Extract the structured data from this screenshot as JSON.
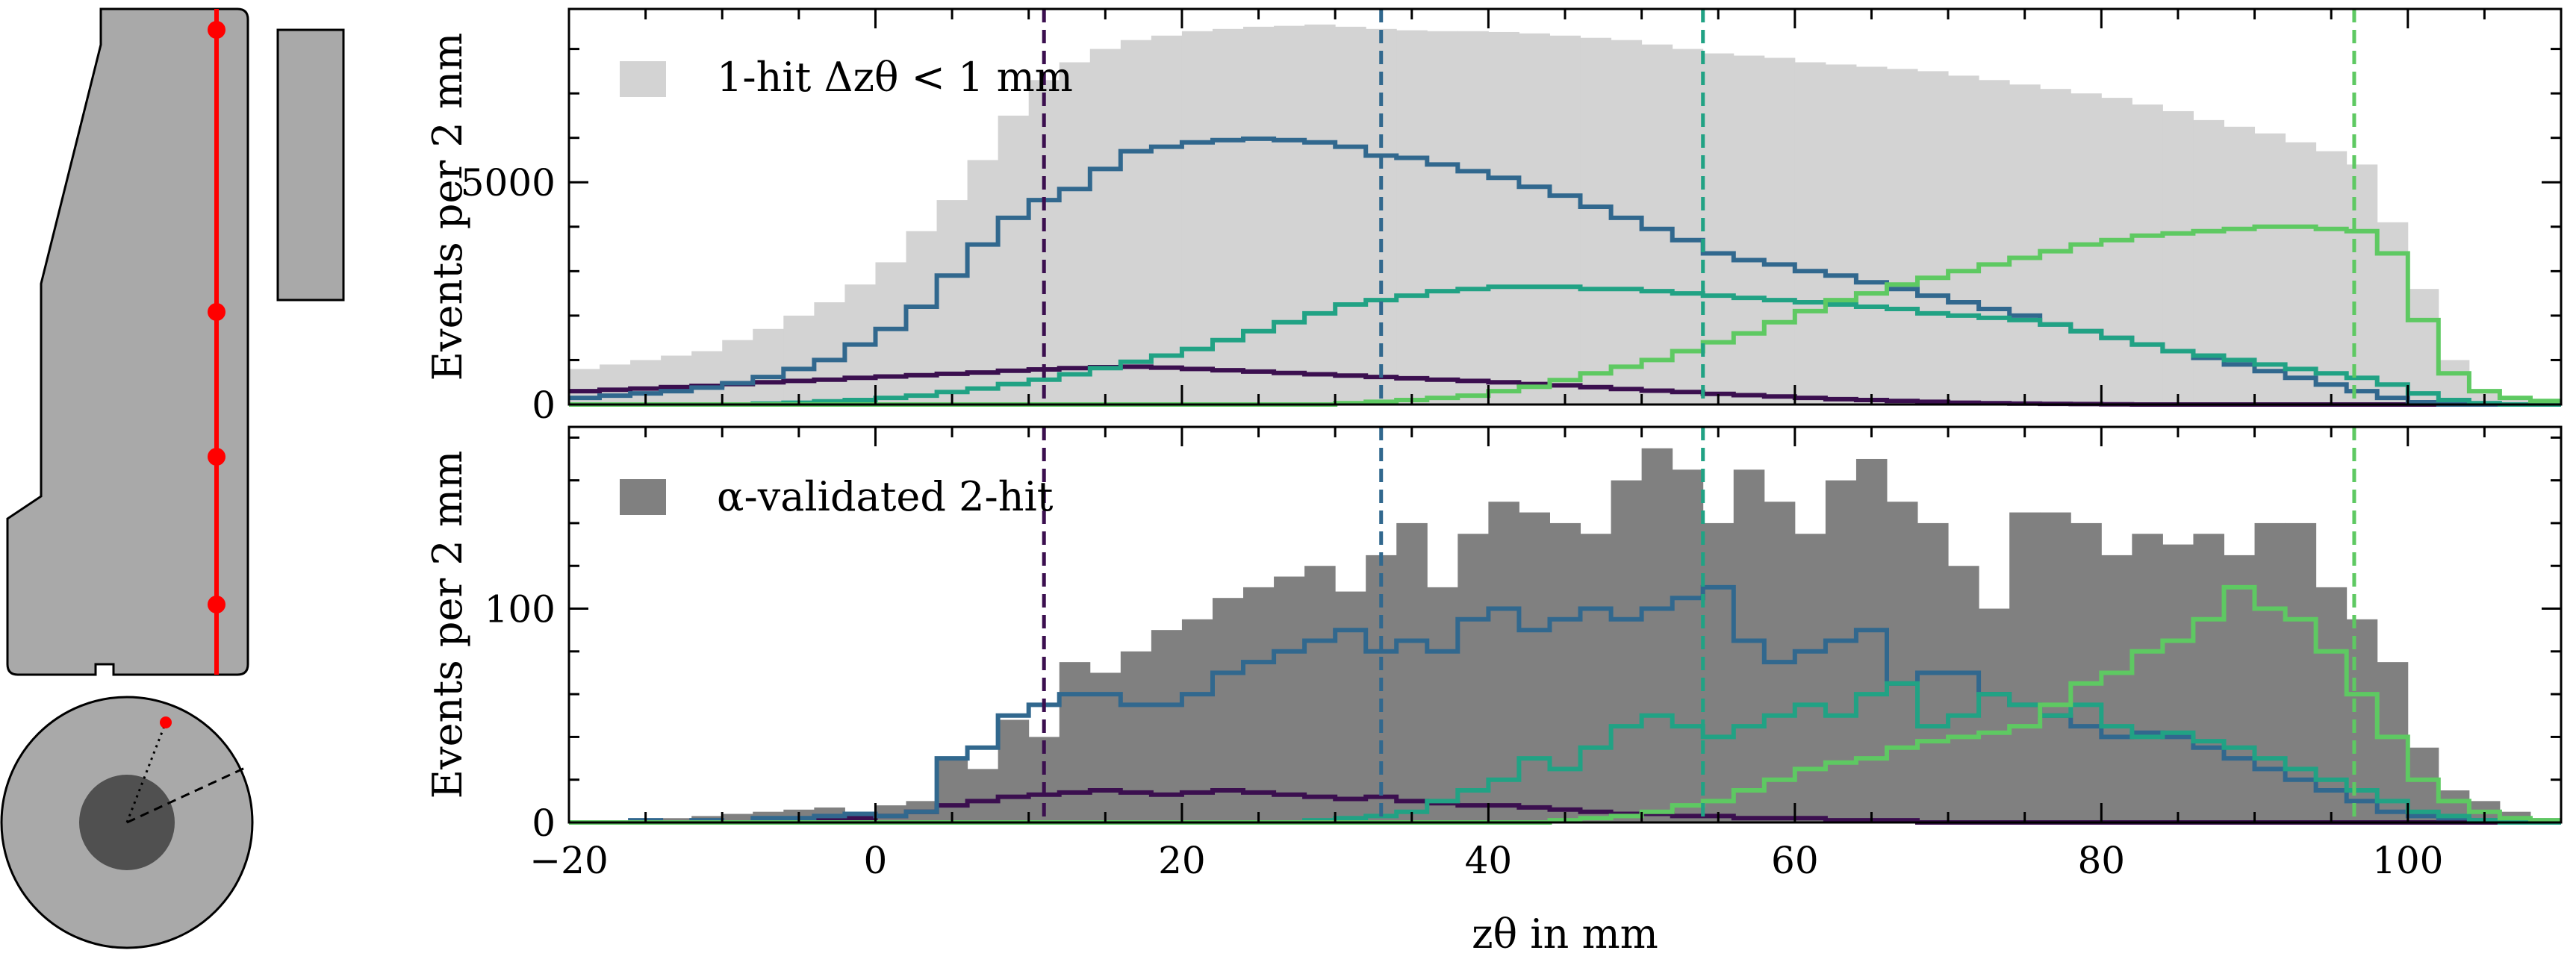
{
  "chart_data": [
    {
      "type": "area",
      "panel": "top",
      "ylabel": "Events per 2 mm",
      "xlim": [
        -20,
        110
      ],
      "ylim": [
        0,
        8900
      ],
      "yticks": [
        0,
        5000
      ],
      "legend": {
        "label": "1-hit Δzθ < 1 mm",
        "placement": "top-left"
      },
      "histogram": {
        "name": "1-hit Δzθ < 1 mm",
        "color": "#d3d3d3",
        "bin_edges": [
          -20,
          -18,
          -16,
          -14,
          -12,
          -10,
          -8,
          -6,
          -4,
          -2,
          0,
          2,
          4,
          6,
          8,
          10,
          12,
          14,
          16,
          18,
          20,
          22,
          24,
          26,
          28,
          30,
          32,
          34,
          36,
          38,
          40,
          42,
          44,
          46,
          48,
          50,
          52,
          54,
          56,
          58,
          60,
          62,
          64,
          66,
          68,
          70,
          72,
          74,
          76,
          78,
          80,
          82,
          84,
          86,
          88,
          90,
          92,
          94,
          96,
          98,
          100,
          102,
          104,
          106,
          108,
          110
        ],
        "values": [
          800,
          900,
          1000,
          1100,
          1200,
          1450,
          1700,
          2000,
          2300,
          2700,
          3200,
          3900,
          4600,
          5500,
          6500,
          7300,
          7700,
          8000,
          8200,
          8300,
          8400,
          8450,
          8500,
          8520,
          8550,
          8500,
          8450,
          8420,
          8400,
          8400,
          8380,
          8350,
          8300,
          8250,
          8200,
          8100,
          8000,
          7900,
          7850,
          7800,
          7700,
          7650,
          7600,
          7550,
          7500,
          7400,
          7300,
          7200,
          7100,
          7000,
          6900,
          6750,
          6600,
          6400,
          6250,
          6100,
          5900,
          5700,
          5400,
          4100,
          2600,
          1000,
          300,
          100,
          50
        ]
      },
      "series": [
        {
          "name": "",
          "color": "#3b0f4f",
          "dashed_line_x": 11,
          "values": [
            300,
            330,
            360,
            390,
            420,
            460,
            500,
            530,
            560,
            600,
            630,
            660,
            690,
            720,
            760,
            790,
            820,
            840,
            850,
            830,
            800,
            770,
            740,
            710,
            680,
            650,
            620,
            590,
            560,
            530,
            500,
            460,
            430,
            390,
            350,
            310,
            280,
            240,
            210,
            180,
            150,
            120,
            100,
            80,
            60,
            40,
            30,
            20,
            15,
            10,
            5,
            0,
            0,
            0,
            0,
            0,
            0,
            0,
            0,
            0,
            0,
            0,
            0,
            0,
            0
          ]
        },
        {
          "name": "",
          "color": "#31688e",
          "dashed_line_x": 33,
          "values": [
            150,
            200,
            250,
            300,
            380,
            480,
            620,
            800,
            1000,
            1350,
            1700,
            2200,
            2900,
            3600,
            4200,
            4600,
            4850,
            5300,
            5700,
            5800,
            5900,
            5950,
            5980,
            5950,
            5900,
            5800,
            5600,
            5550,
            5400,
            5250,
            5100,
            4900,
            4700,
            4450,
            4200,
            3950,
            3700,
            3400,
            3250,
            3150,
            3000,
            2900,
            2750,
            2600,
            2450,
            2300,
            2150,
            2000,
            1800,
            1650,
            1500,
            1350,
            1200,
            1050,
            900,
            750,
            600,
            450,
            300,
            150,
            50,
            0,
            0,
            0,
            0
          ]
        },
        {
          "name": "",
          "color": "#21a284",
          "dashed_line_x": 54,
          "values": [
            0,
            0,
            0,
            0,
            0,
            0,
            20,
            40,
            70,
            100,
            150,
            200,
            280,
            360,
            460,
            560,
            680,
            820,
            960,
            1100,
            1250,
            1450,
            1650,
            1850,
            2050,
            2250,
            2350,
            2450,
            2550,
            2600,
            2650,
            2650,
            2650,
            2600,
            2600,
            2550,
            2500,
            2450,
            2400,
            2350,
            2300,
            2250,
            2200,
            2150,
            2050,
            2000,
            1950,
            1900,
            1800,
            1650,
            1500,
            1350,
            1200,
            1100,
            1000,
            900,
            800,
            700,
            600,
            450,
            250,
            100,
            30,
            0,
            0
          ]
        },
        {
          "name": "",
          "color": "#5ec962",
          "dashed_line_x": 96.5,
          "values": [
            0,
            0,
            0,
            0,
            0,
            0,
            0,
            0,
            0,
            0,
            0,
            0,
            0,
            0,
            0,
            0,
            0,
            0,
            0,
            0,
            0,
            0,
            0,
            0,
            0,
            30,
            60,
            100,
            150,
            200,
            300,
            400,
            550,
            700,
            850,
            1000,
            1200,
            1400,
            1600,
            1850,
            2100,
            2350,
            2500,
            2700,
            2850,
            3000,
            3150,
            3300,
            3450,
            3600,
            3700,
            3800,
            3850,
            3900,
            3950,
            4000,
            4000,
            3950,
            3900,
            3400,
            1900,
            700,
            300,
            150,
            80
          ]
        }
      ]
    },
    {
      "type": "area",
      "panel": "bottom",
      "title": "",
      "xlabel": "zθ in mm",
      "ylabel": "Events per 2 mm",
      "xlim": [
        -20,
        110
      ],
      "ylim": [
        0,
        185
      ],
      "xticks": [
        -20,
        0,
        20,
        40,
        60,
        80,
        100
      ],
      "xtick_labels": [
        "−20",
        "0",
        "20",
        "40",
        "60",
        "80",
        "100"
      ],
      "yticks": [
        0,
        100
      ],
      "legend": {
        "label": "α-validated 2-hit",
        "placement": "top-left"
      },
      "histogram": {
        "name": "α-validated 2-hit",
        "color": "#808080",
        "bin_edges": [
          -20,
          -18,
          -16,
          -14,
          -12,
          -10,
          -8,
          -6,
          -4,
          -2,
          0,
          2,
          4,
          6,
          8,
          10,
          12,
          14,
          16,
          18,
          20,
          22,
          24,
          26,
          28,
          30,
          32,
          34,
          36,
          38,
          40,
          42,
          44,
          46,
          48,
          50,
          52,
          54,
          56,
          58,
          60,
          62,
          64,
          66,
          68,
          70,
          72,
          74,
          76,
          78,
          80,
          82,
          84,
          86,
          88,
          90,
          92,
          94,
          96,
          98,
          100,
          102,
          104,
          106,
          108,
          110
        ],
        "values": [
          0,
          0,
          1,
          2,
          3,
          4,
          5,
          6,
          7,
          5,
          8,
          10,
          30,
          25,
          48,
          40,
          75,
          70,
          80,
          90,
          95,
          105,
          110,
          115,
          120,
          108,
          125,
          140,
          110,
          135,
          150,
          145,
          140,
          135,
          160,
          175,
          165,
          140,
          165,
          150,
          135,
          160,
          170,
          150,
          140,
          120,
          100,
          145,
          145,
          140,
          125,
          135,
          130,
          135,
          125,
          140,
          140,
          110,
          95,
          75,
          35,
          15,
          10,
          5,
          2
        ]
      },
      "series": [
        {
          "name": "",
          "color": "#3b0f4f",
          "dashed_line_x": 11,
          "values": [
            0,
            0,
            0,
            0,
            0,
            0,
            0,
            0,
            1,
            2,
            3,
            5,
            8,
            10,
            12,
            13,
            14,
            15,
            14,
            13,
            14,
            15,
            14,
            13,
            12,
            11,
            12,
            10,
            9,
            8,
            8,
            7,
            6,
            5,
            4,
            4,
            3,
            3,
            2,
            2,
            2,
            1,
            1,
            1,
            0,
            0,
            0,
            0,
            0,
            0,
            0,
            0,
            0,
            0,
            0,
            0,
            0,
            0,
            0,
            0,
            0,
            0,
            0,
            0,
            0
          ]
        },
        {
          "name": "",
          "color": "#31688e",
          "dashed_line_x": 33,
          "values": [
            0,
            0,
            1,
            0,
            1,
            0,
            2,
            2,
            3,
            4,
            3,
            5,
            30,
            35,
            50,
            55,
            60,
            60,
            55,
            55,
            60,
            70,
            75,
            80,
            85,
            90,
            80,
            85,
            80,
            95,
            100,
            90,
            95,
            100,
            95,
            100,
            105,
            110,
            85,
            75,
            80,
            85,
            90,
            65,
            70,
            70,
            60,
            55,
            50,
            45,
            40,
            42,
            40,
            35,
            30,
            25,
            20,
            15,
            10,
            5,
            3,
            2,
            1,
            0,
            0
          ]
        },
        {
          "name": "",
          "color": "#21a284",
          "dashed_line_x": 54,
          "values": [
            0,
            0,
            0,
            0,
            0,
            0,
            0,
            0,
            0,
            0,
            0,
            0,
            0,
            0,
            0,
            0,
            0,
            0,
            0,
            0,
            0,
            0,
            0,
            0,
            1,
            2,
            3,
            5,
            10,
            15,
            20,
            30,
            25,
            35,
            45,
            50,
            45,
            40,
            45,
            50,
            55,
            50,
            60,
            65,
            45,
            50,
            60,
            55,
            50,
            55,
            45,
            40,
            42,
            38,
            35,
            30,
            25,
            20,
            15,
            10,
            5,
            3,
            1,
            0,
            0
          ]
        },
        {
          "name": "",
          "color": "#5ec962",
          "dashed_line_x": 96.5,
          "values": [
            0,
            0,
            0,
            0,
            0,
            0,
            0,
            0,
            0,
            0,
            0,
            0,
            0,
            0,
            0,
            0,
            0,
            0,
            0,
            0,
            0,
            0,
            0,
            0,
            0,
            0,
            0,
            0,
            0,
            0,
            0,
            0,
            1,
            2,
            3,
            5,
            8,
            10,
            15,
            20,
            25,
            28,
            30,
            35,
            38,
            40,
            42,
            45,
            55,
            65,
            70,
            80,
            85,
            95,
            110,
            100,
            95,
            80,
            60,
            40,
            20,
            10,
            5,
            2,
            1
          ]
        }
      ]
    }
  ],
  "detector_sketch": {
    "marker_color": "#ff0000",
    "body_color": "#a9a9a9",
    "core_color": "#505050"
  }
}
